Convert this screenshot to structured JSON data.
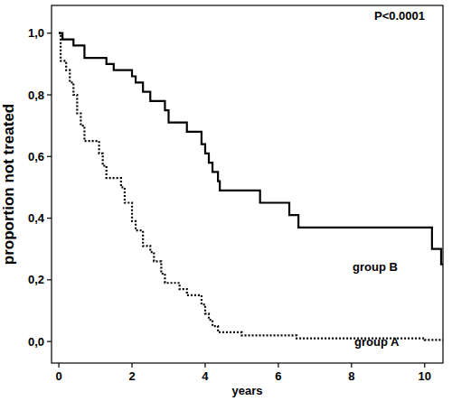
{
  "chart_data": {
    "type": "step",
    "annotation": "P<0.0001",
    "x_label": "years",
    "y_label": "proportion not treated",
    "xlim": [
      -0.2,
      10.5
    ],
    "ylim": [
      -0.07,
      1.09
    ],
    "xticks": [
      0,
      2,
      4,
      6,
      8,
      10
    ],
    "yticks": [
      {
        "value": 0,
        "label": "0,0"
      },
      {
        "value": 0.2,
        "label": "0,2"
      },
      {
        "value": 0.4,
        "label": "0,4"
      },
      {
        "value": 0.6,
        "label": "0,6"
      },
      {
        "value": 0.8,
        "label": "0,8"
      },
      {
        "value": 1.0,
        "label": "1,0"
      }
    ],
    "grid": false,
    "series": [
      {
        "name": "group B",
        "color": "#000000",
        "line_style": "solid",
        "x": [
          0,
          0.1,
          0.4,
          0.7,
          1.3,
          1.5,
          2.0,
          2.1,
          2.3,
          2.5,
          2.9,
          3.0,
          3.5,
          3.9,
          4.0,
          4.1,
          4.2,
          4.35,
          4.4,
          5.5,
          6.3,
          6.55,
          10.2,
          10.45,
          10.5
        ],
        "values": [
          1.0,
          0.98,
          0.96,
          0.92,
          0.9,
          0.88,
          0.86,
          0.84,
          0.81,
          0.78,
          0.75,
          0.71,
          0.68,
          0.64,
          0.61,
          0.58,
          0.55,
          0.52,
          0.49,
          0.45,
          0.41,
          0.37,
          0.3,
          0.25,
          0.25
        ]
      },
      {
        "name": "group A",
        "color": "#000000",
        "line_style": "dotted",
        "x": [
          0,
          0.05,
          0.2,
          0.3,
          0.4,
          0.5,
          0.6,
          0.7,
          1.1,
          1.2,
          1.3,
          1.7,
          1.8,
          2.0,
          2.1,
          2.3,
          2.5,
          2.6,
          2.8,
          2.9,
          3.3,
          3.5,
          3.9,
          4.0,
          4.1,
          4.2,
          4.35,
          5.0,
          6.5,
          10.0,
          10.5
        ],
        "values": [
          1.0,
          0.91,
          0.88,
          0.84,
          0.8,
          0.74,
          0.7,
          0.65,
          0.61,
          0.57,
          0.53,
          0.5,
          0.45,
          0.39,
          0.36,
          0.31,
          0.29,
          0.26,
          0.22,
          0.19,
          0.17,
          0.15,
          0.12,
          0.09,
          0.07,
          0.05,
          0.03,
          0.02,
          0.01,
          0.005,
          0.005
        ]
      }
    ]
  }
}
